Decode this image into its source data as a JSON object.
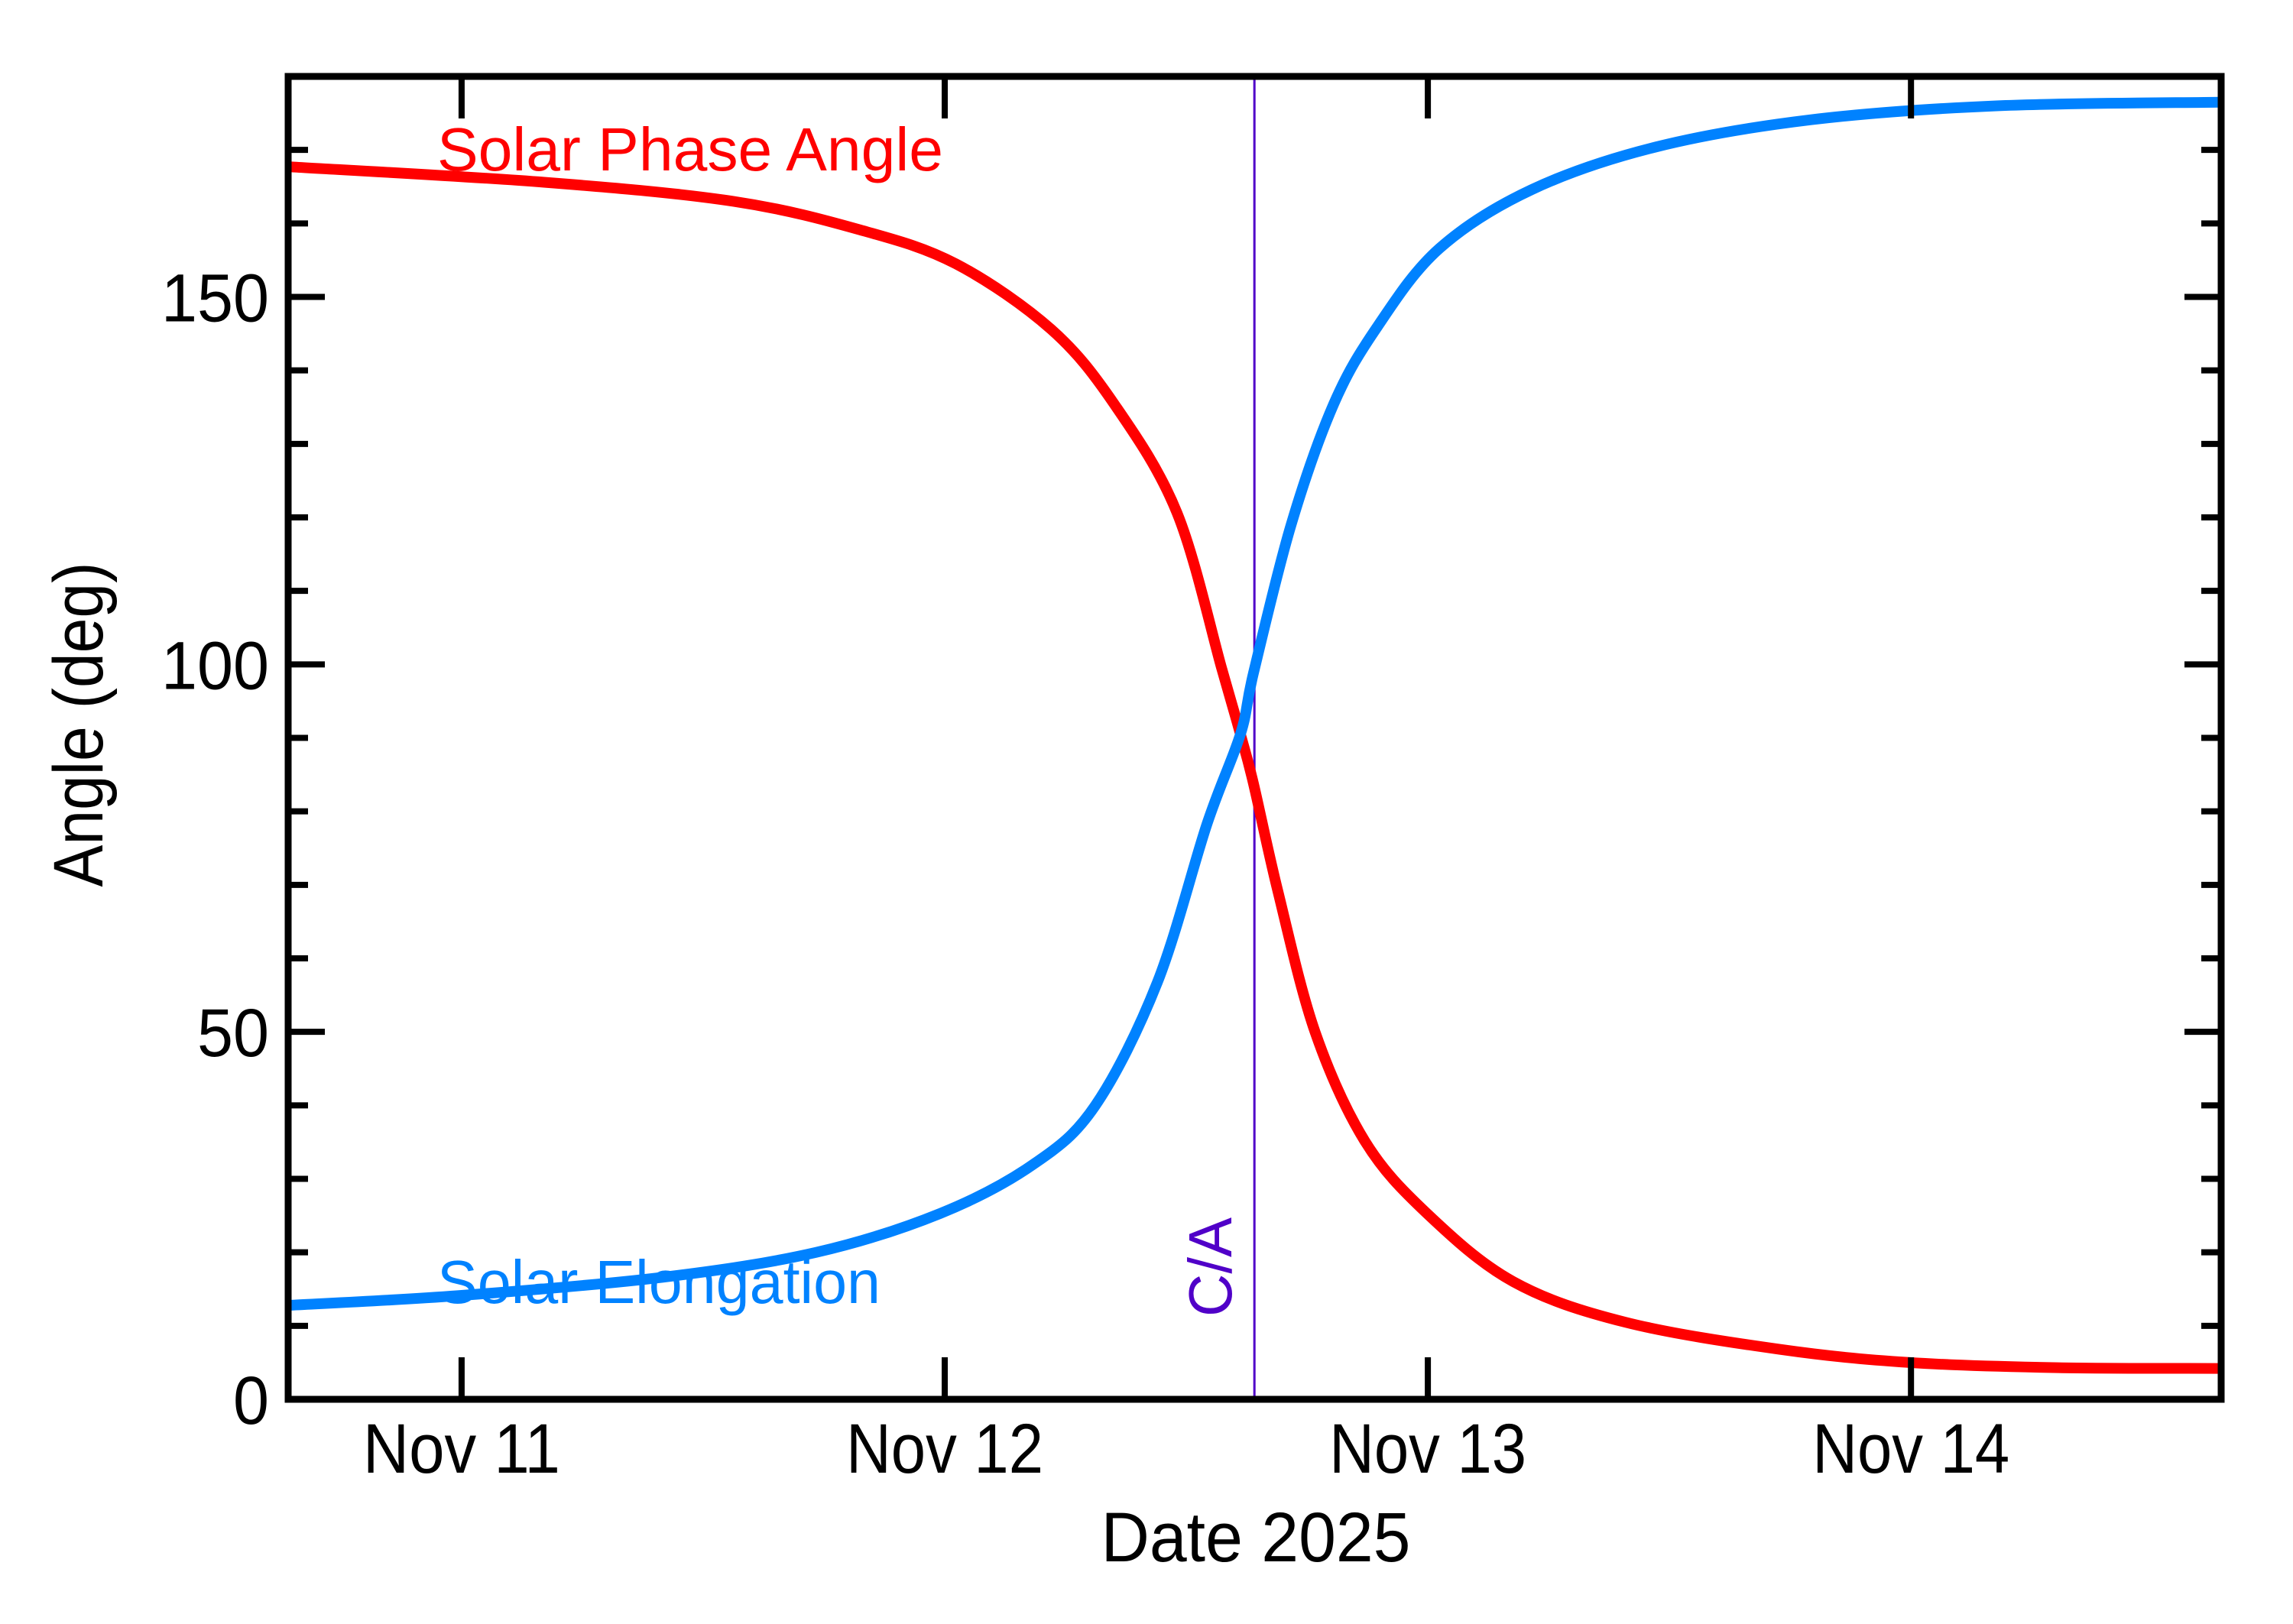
{
  "chart_data": {
    "type": "line",
    "title": "",
    "xlabel": "Date 2025",
    "ylabel": "Angle (deg)",
    "xlim_days": [
      10.641,
      14.642
    ],
    "ylim": [
      0,
      180
    ],
    "x_unit": "day of November 2025 (fractional)",
    "grid": false,
    "legend_position": "inline labels (upper-left / lower-left)",
    "x_ticks": [
      {
        "value": 11,
        "label": "Nov 11"
      },
      {
        "value": 12,
        "label": "Nov 12"
      },
      {
        "value": 13,
        "label": "Nov 13"
      },
      {
        "value": 14,
        "label": "Nov 14"
      }
    ],
    "y_ticks": [
      {
        "value": 0,
        "label": "0"
      },
      {
        "value": 50,
        "label": "50"
      },
      {
        "value": 100,
        "label": "100"
      },
      {
        "value": 150,
        "label": "150"
      }
    ],
    "y_minor_step": 10,
    "series": [
      {
        "name": "Solar Phase Angle",
        "color": "#ff0000",
        "x": [
          10.646,
          11.171,
          11.563,
          11.826,
          12.023,
          12.22,
          12.351,
          12.481,
          12.574,
          12.612,
          12.639,
          12.69,
          12.767,
          12.87,
          12.998,
          13.177,
          13.408,
          13.728,
          13.998,
          14.305,
          14.639
        ],
        "values": [
          167.7,
          165.6,
          163.0,
          159.1,
          154.5,
          145.6,
          135.4,
          120.6,
          99.3,
          90.5,
          83.8,
          69.0,
          49.9,
          35.1,
          25.3,
          16.0,
          10.5,
          6.8,
          5.0,
          4.3,
          4.2
        ]
      },
      {
        "name": "Solar Elongation",
        "color": "#0082ff",
        "x": [
          10.646,
          10.992,
          11.415,
          11.734,
          11.991,
          12.184,
          12.312,
          12.44,
          12.543,
          12.612,
          12.639,
          12.717,
          12.805,
          12.896,
          13.024,
          13.215,
          13.472,
          13.793,
          14.177,
          14.639
        ],
        "values": [
          12.8,
          14.1,
          16.6,
          20.0,
          25.3,
          32.0,
          40.0,
          56.7,
          78.3,
          90.5,
          98.8,
          119.0,
          135.4,
          146.0,
          156.6,
          164.6,
          170.4,
          174.1,
          176.0,
          176.5
        ]
      }
    ],
    "annotations": [
      {
        "type": "vline",
        "x": 12.641,
        "label": "C/A",
        "color": "#5000c8"
      }
    ]
  },
  "labels": {
    "phase": "Solar Phase Angle",
    "elongation": "Solar Elongation",
    "ca": "C/A",
    "xlabel": "Date 2025",
    "ylabel": "Angle (deg)"
  }
}
